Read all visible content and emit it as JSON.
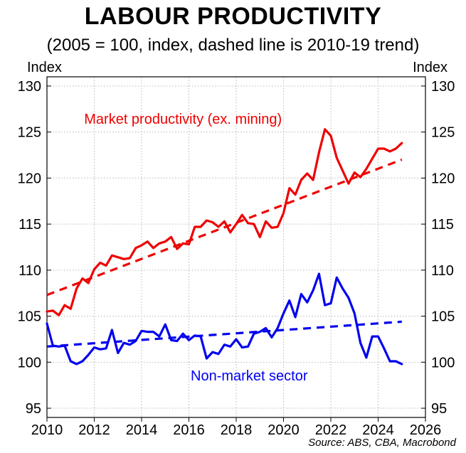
{
  "chart_data": {
    "type": "line",
    "title": "LABOUR PRODUCTIVITY",
    "subtitle": "(2005 = 100, index, dashed line is 2010-19 trend)",
    "ylabel_left": "Index",
    "ylabel_right": "Index",
    "source": "Source: ABS, CBA, Macrobond",
    "xlim": [
      2010,
      2026
    ],
    "ylim": [
      94,
      131
    ],
    "xticks": [
      2010,
      2012,
      2014,
      2016,
      2018,
      2020,
      2022,
      2024,
      2026
    ],
    "yticks": [
      95,
      100,
      105,
      110,
      115,
      120,
      125,
      130
    ],
    "grid": true,
    "series": [
      {
        "name": "Market productivity (ex. mining)",
        "color": "#ee0000",
        "style": "solid",
        "points": [
          [
            2010.0,
            105.5
          ],
          [
            2010.25,
            105.6
          ],
          [
            2010.5,
            105.1
          ],
          [
            2010.75,
            106.2
          ],
          [
            2011.0,
            105.8
          ],
          [
            2011.25,
            108.0
          ],
          [
            2011.5,
            109.1
          ],
          [
            2011.75,
            108.6
          ],
          [
            2012.0,
            110.1
          ],
          [
            2012.25,
            110.8
          ],
          [
            2012.5,
            110.5
          ],
          [
            2012.75,
            111.6
          ],
          [
            2013.0,
            111.4
          ],
          [
            2013.25,
            111.2
          ],
          [
            2013.5,
            111.3
          ],
          [
            2013.75,
            112.4
          ],
          [
            2014.0,
            112.7
          ],
          [
            2014.25,
            113.1
          ],
          [
            2014.5,
            112.4
          ],
          [
            2014.75,
            112.9
          ],
          [
            2015.0,
            113.1
          ],
          [
            2015.25,
            113.6
          ],
          [
            2015.5,
            112.3
          ],
          [
            2015.75,
            112.9
          ],
          [
            2016.0,
            112.8
          ],
          [
            2016.25,
            114.7
          ],
          [
            2016.5,
            114.7
          ],
          [
            2016.75,
            115.4
          ],
          [
            2017.0,
            115.2
          ],
          [
            2017.25,
            114.7
          ],
          [
            2017.5,
            115.3
          ],
          [
            2017.75,
            114.1
          ],
          [
            2018.0,
            115.0
          ],
          [
            2018.25,
            116.0
          ],
          [
            2018.5,
            115.1
          ],
          [
            2018.75,
            115.0
          ],
          [
            2019.0,
            113.6
          ],
          [
            2019.25,
            115.3
          ],
          [
            2019.5,
            114.6
          ],
          [
            2019.75,
            114.7
          ],
          [
            2020.0,
            116.2
          ],
          [
            2020.25,
            118.9
          ],
          [
            2020.5,
            118.2
          ],
          [
            2020.75,
            119.8
          ],
          [
            2021.0,
            120.5
          ],
          [
            2021.25,
            119.8
          ],
          [
            2021.5,
            122.8
          ],
          [
            2021.75,
            125.3
          ],
          [
            2022.0,
            124.6
          ],
          [
            2022.25,
            122.2
          ],
          [
            2022.5,
            120.8
          ],
          [
            2022.75,
            119.4
          ],
          [
            2023.0,
            120.6
          ],
          [
            2023.25,
            120.1
          ],
          [
            2023.5,
            121.0
          ],
          [
            2023.75,
            122.1
          ],
          [
            2024.0,
            123.2
          ],
          [
            2024.25,
            123.2
          ],
          [
            2024.5,
            122.9
          ],
          [
            2024.75,
            123.2
          ],
          [
            2025.0,
            123.8
          ]
        ]
      },
      {
        "name": "Market productivity trend (2010-19)",
        "color": "#ee0000",
        "style": "dashed",
        "points": [
          [
            2010.0,
            107.3
          ],
          [
            2025.0,
            122.0
          ]
        ]
      },
      {
        "name": "Non-market sector",
        "color": "#0000ee",
        "style": "solid",
        "points": [
          [
            2010.0,
            104.2
          ],
          [
            2010.25,
            101.8
          ],
          [
            2010.5,
            101.7
          ],
          [
            2010.75,
            101.8
          ],
          [
            2011.0,
            100.1
          ],
          [
            2011.25,
            99.8
          ],
          [
            2011.5,
            100.1
          ],
          [
            2011.75,
            100.8
          ],
          [
            2012.0,
            101.6
          ],
          [
            2012.25,
            101.4
          ],
          [
            2012.5,
            101.5
          ],
          [
            2012.75,
            103.5
          ],
          [
            2013.0,
            101.0
          ],
          [
            2013.25,
            102.1
          ],
          [
            2013.5,
            101.9
          ],
          [
            2013.75,
            102.3
          ],
          [
            2014.0,
            103.4
          ],
          [
            2014.25,
            103.3
          ],
          [
            2014.5,
            103.3
          ],
          [
            2014.75,
            102.8
          ],
          [
            2015.0,
            104.1
          ],
          [
            2015.25,
            102.4
          ],
          [
            2015.5,
            102.3
          ],
          [
            2015.75,
            103.1
          ],
          [
            2016.0,
            102.4
          ],
          [
            2016.25,
            102.9
          ],
          [
            2016.5,
            102.8
          ],
          [
            2016.75,
            100.4
          ],
          [
            2017.0,
            101.1
          ],
          [
            2017.25,
            100.9
          ],
          [
            2017.5,
            101.9
          ],
          [
            2017.75,
            101.7
          ],
          [
            2018.0,
            102.5
          ],
          [
            2018.25,
            101.6
          ],
          [
            2018.5,
            101.7
          ],
          [
            2018.75,
            103.1
          ],
          [
            2019.0,
            103.3
          ],
          [
            2019.25,
            103.7
          ],
          [
            2019.5,
            102.7
          ],
          [
            2019.75,
            103.7
          ],
          [
            2020.0,
            105.3
          ],
          [
            2020.25,
            106.7
          ],
          [
            2020.5,
            104.9
          ],
          [
            2020.75,
            107.4
          ],
          [
            2021.0,
            106.5
          ],
          [
            2021.25,
            107.8
          ],
          [
            2021.5,
            109.6
          ],
          [
            2021.75,
            106.2
          ],
          [
            2022.0,
            106.4
          ],
          [
            2022.25,
            109.2
          ],
          [
            2022.5,
            108.0
          ],
          [
            2022.75,
            107.0
          ],
          [
            2023.0,
            105.3
          ],
          [
            2023.25,
            102.1
          ],
          [
            2023.5,
            100.5
          ],
          [
            2023.75,
            102.8
          ],
          [
            2024.0,
            102.8
          ],
          [
            2024.25,
            101.5
          ],
          [
            2024.5,
            100.1
          ],
          [
            2024.75,
            100.1
          ],
          [
            2025.0,
            99.8
          ]
        ]
      },
      {
        "name": "Non-market trend (2010-19)",
        "color": "#0000ee",
        "style": "dashed",
        "points": [
          [
            2010.0,
            101.7
          ],
          [
            2025.0,
            104.4
          ]
        ]
      }
    ],
    "annotations": [
      {
        "text": "Market productivity (ex. mining)",
        "color": "#ee0000",
        "x": 2015.75,
        "y": 125.9
      },
      {
        "text": "Non-market sector",
        "color": "#0000ee",
        "x": 2018.55,
        "y": 98.0
      }
    ]
  }
}
